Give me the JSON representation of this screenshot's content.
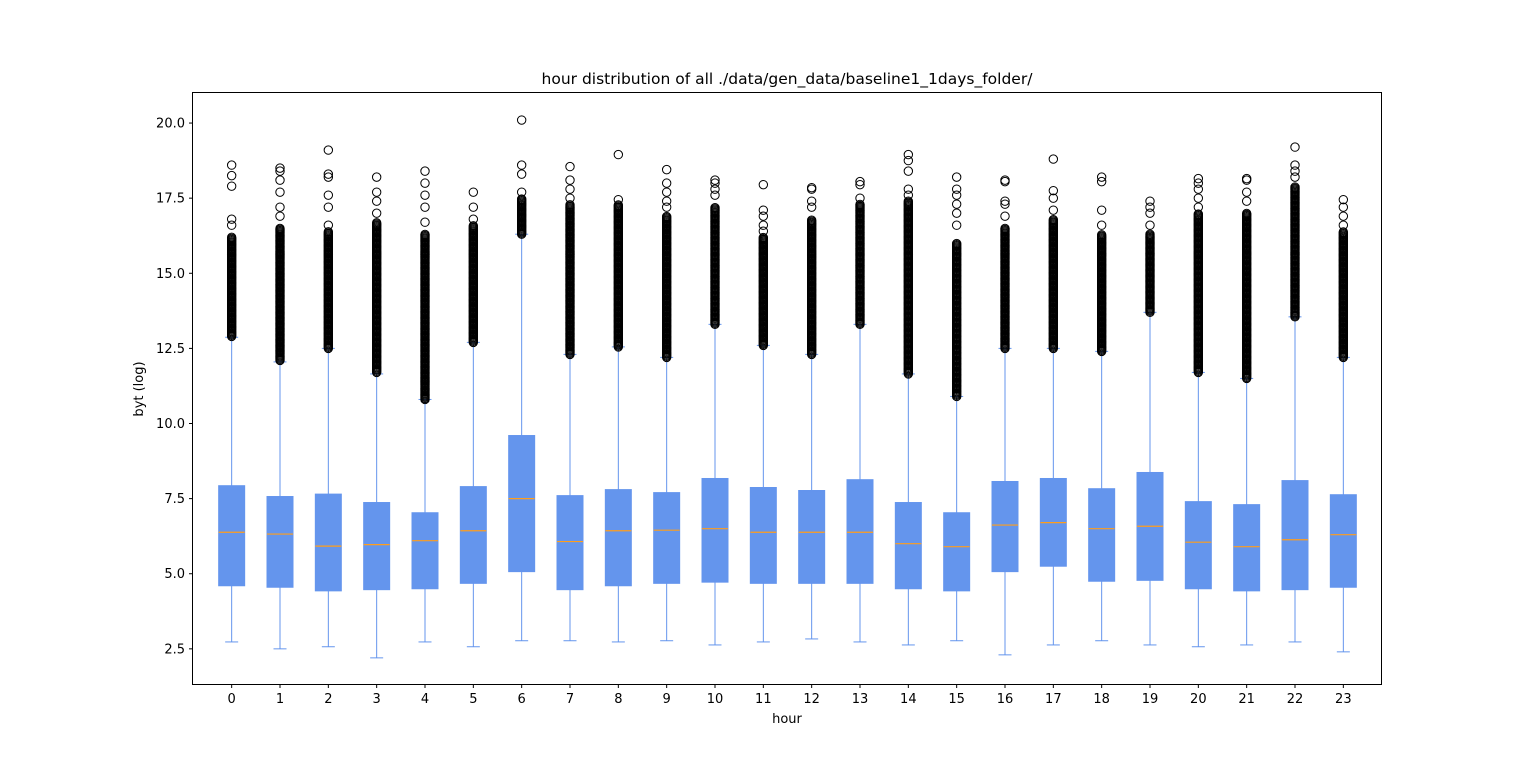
{
  "chart_data": {
    "type": "box",
    "title": "hour distribution of all ./data/gen_data/baseline1_1days_folder/",
    "xlabel": "hour",
    "ylabel": "byt (log)",
    "ylim": [
      1.33,
      21.0
    ],
    "yticks": [
      2.5,
      5.0,
      7.5,
      10.0,
      12.5,
      15.0,
      17.5,
      20.0
    ],
    "ytick_labels": [
      "2.5",
      "5.0",
      "7.5",
      "10.0",
      "12.5",
      "15.0",
      "17.5",
      "20.0"
    ],
    "grid": false,
    "colors": {
      "box": "#6495ed",
      "median": "#ff9e1b",
      "outlier_edge": "#000000"
    },
    "categories": [
      "0",
      "1",
      "2",
      "3",
      "4",
      "5",
      "6",
      "7",
      "8",
      "9",
      "10",
      "11",
      "12",
      "13",
      "14",
      "15",
      "16",
      "17",
      "18",
      "19",
      "20",
      "21",
      "22",
      "23"
    ],
    "boxes": [
      {
        "whislo": 2.73,
        "q1": 4.6,
        "med": 6.38,
        "q3": 7.93,
        "whishi": 12.87,
        "flier_lo": 12.9,
        "flier_hi": 16.2,
        "extremes": [
          16.6,
          16.8,
          17.9,
          18.25,
          18.6
        ]
      },
      {
        "whislo": 2.5,
        "q1": 4.55,
        "med": 6.32,
        "q3": 7.57,
        "whishi": 12.05,
        "flier_lo": 12.1,
        "flier_hi": 16.5,
        "extremes": [
          16.9,
          17.2,
          17.7,
          18.1,
          18.4,
          18.5
        ]
      },
      {
        "whislo": 2.57,
        "q1": 4.43,
        "med": 5.92,
        "q3": 7.65,
        "whishi": 12.5,
        "flier_lo": 12.5,
        "flier_hi": 16.4,
        "extremes": [
          16.6,
          17.2,
          17.6,
          18.2,
          18.3,
          19.1
        ]
      },
      {
        "whislo": 2.2,
        "q1": 4.47,
        "med": 5.97,
        "q3": 7.37,
        "whishi": 11.65,
        "flier_lo": 11.7,
        "flier_hi": 16.7,
        "extremes": [
          17.0,
          17.4,
          17.7,
          18.2
        ]
      },
      {
        "whislo": 2.73,
        "q1": 4.5,
        "med": 6.1,
        "q3": 7.03,
        "whishi": 10.8,
        "flier_lo": 10.8,
        "flier_hi": 16.3,
        "extremes": [
          16.7,
          17.2,
          17.6,
          18.0,
          18.4
        ]
      },
      {
        "whislo": 2.57,
        "q1": 4.68,
        "med": 6.43,
        "q3": 7.9,
        "whishi": 12.7,
        "flier_lo": 12.7,
        "flier_hi": 16.6,
        "extremes": [
          16.8,
          17.2,
          17.7
        ]
      },
      {
        "whislo": 2.77,
        "q1": 5.07,
        "med": 7.5,
        "q3": 9.6,
        "whishi": 16.3,
        "flier_lo": 16.3,
        "flier_hi": 17.5,
        "extremes": [
          17.7,
          18.3,
          18.6,
          20.1
        ]
      },
      {
        "whislo": 2.77,
        "q1": 4.47,
        "med": 6.07,
        "q3": 7.6,
        "whishi": 12.3,
        "flier_lo": 12.3,
        "flier_hi": 17.3,
        "extremes": [
          17.5,
          17.8,
          18.1,
          18.55
        ]
      },
      {
        "whislo": 2.73,
        "q1": 4.6,
        "med": 6.43,
        "q3": 7.8,
        "whishi": 12.55,
        "flier_lo": 12.55,
        "flier_hi": 17.3,
        "extremes": [
          17.45,
          18.95
        ]
      },
      {
        "whislo": 2.77,
        "q1": 4.68,
        "med": 6.45,
        "q3": 7.7,
        "whishi": 12.2,
        "flier_lo": 12.2,
        "flier_hi": 16.9,
        "extremes": [
          17.2,
          17.4,
          17.7,
          18.0,
          18.45
        ]
      },
      {
        "whislo": 2.63,
        "q1": 4.72,
        "med": 6.5,
        "q3": 8.17,
        "whishi": 13.3,
        "flier_lo": 13.3,
        "flier_hi": 17.2,
        "extremes": [
          17.6,
          17.8,
          18.0,
          18.1
        ]
      },
      {
        "whislo": 2.73,
        "q1": 4.68,
        "med": 6.38,
        "q3": 7.87,
        "whishi": 12.6,
        "flier_lo": 12.6,
        "flier_hi": 16.2,
        "extremes": [
          16.4,
          16.6,
          16.9,
          17.1,
          17.95
        ]
      },
      {
        "whislo": 2.83,
        "q1": 4.68,
        "med": 6.38,
        "q3": 7.77,
        "whishi": 12.3,
        "flier_lo": 12.3,
        "flier_hi": 16.8,
        "extremes": [
          17.2,
          17.4,
          17.8,
          17.85
        ]
      },
      {
        "whislo": 2.73,
        "q1": 4.68,
        "med": 6.38,
        "q3": 8.13,
        "whishi": 13.3,
        "flier_lo": 13.3,
        "flier_hi": 17.3,
        "extremes": [
          17.5,
          17.95,
          18.05
        ]
      },
      {
        "whislo": 2.63,
        "q1": 4.5,
        "med": 6.0,
        "q3": 7.37,
        "whishi": 11.65,
        "flier_lo": 11.65,
        "flier_hi": 17.4,
        "extremes": [
          17.6,
          17.8,
          18.4,
          18.75,
          18.95
        ]
      },
      {
        "whislo": 2.77,
        "q1": 4.43,
        "med": 5.9,
        "q3": 7.03,
        "whishi": 10.9,
        "flier_lo": 10.9,
        "flier_hi": 16.0,
        "extremes": [
          16.6,
          17.0,
          17.3,
          17.6,
          17.8,
          18.2
        ]
      },
      {
        "whislo": 2.3,
        "q1": 5.07,
        "med": 6.62,
        "q3": 8.07,
        "whishi": 12.5,
        "flier_lo": 12.5,
        "flier_hi": 16.5,
        "extremes": [
          16.9,
          17.3,
          17.4,
          18.05,
          18.1
        ]
      },
      {
        "whislo": 2.63,
        "q1": 5.25,
        "med": 6.7,
        "q3": 8.17,
        "whishi": 12.5,
        "flier_lo": 12.5,
        "flier_hi": 16.8,
        "extremes": [
          17.1,
          17.5,
          17.75,
          18.8
        ]
      },
      {
        "whislo": 2.77,
        "q1": 4.75,
        "med": 6.5,
        "q3": 7.83,
        "whishi": 12.4,
        "flier_lo": 12.4,
        "flier_hi": 16.3,
        "extremes": [
          16.6,
          17.1,
          18.05,
          18.2
        ]
      },
      {
        "whislo": 2.63,
        "q1": 4.78,
        "med": 6.58,
        "q3": 8.37,
        "whishi": 13.7,
        "flier_lo": 13.7,
        "flier_hi": 16.3,
        "extremes": [
          16.6,
          17.0,
          17.2,
          17.4
        ]
      },
      {
        "whislo": 2.57,
        "q1": 4.5,
        "med": 6.05,
        "q3": 7.4,
        "whishi": 11.7,
        "flier_lo": 11.7,
        "flier_hi": 17.0,
        "extremes": [
          17.2,
          17.5,
          17.8,
          18.0,
          18.15
        ]
      },
      {
        "whislo": 2.63,
        "q1": 4.43,
        "med": 5.9,
        "q3": 7.3,
        "whishi": 11.5,
        "flier_lo": 11.5,
        "flier_hi": 17.0,
        "extremes": [
          17.4,
          17.7,
          18.1,
          18.15
        ]
      },
      {
        "whislo": 2.73,
        "q1": 4.47,
        "med": 6.13,
        "q3": 8.1,
        "whishi": 13.55,
        "flier_lo": 13.55,
        "flier_hi": 17.9,
        "extremes": [
          18.2,
          18.4,
          18.6,
          19.2
        ]
      },
      {
        "whislo": 2.4,
        "q1": 4.55,
        "med": 6.3,
        "q3": 7.63,
        "whishi": 12.2,
        "flier_lo": 12.2,
        "flier_hi": 16.4,
        "extremes": [
          16.6,
          16.9,
          17.2,
          17.45
        ]
      }
    ]
  }
}
